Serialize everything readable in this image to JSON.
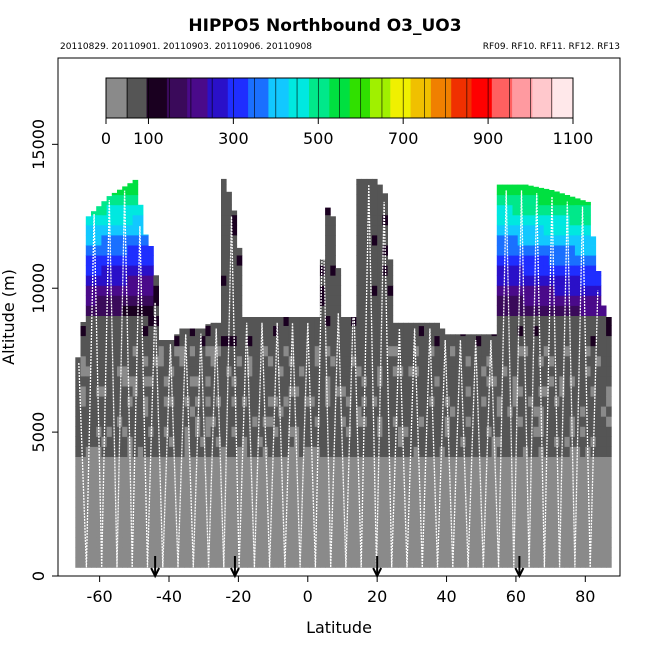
{
  "chart_data": {
    "type": "heatmap",
    "title": "HIPPO5 Northbound O3_UO3",
    "subtitle_left": "20110829. 20110901. 20110903. 20110906. 20110908",
    "subtitle_right": "RF09. RF10. RF11. RF12. RF13",
    "xlabel": "Latitude",
    "ylabel": "Altitude (m)",
    "xlim": [
      -72,
      90
    ],
    "ylim": [
      0,
      18000
    ],
    "x_ticks": [
      -60,
      -40,
      -20,
      0,
      20,
      40,
      60,
      80
    ],
    "y_ticks": [
      0,
      5000,
      10000,
      15000
    ],
    "colorbar": {
      "range": [
        0,
        1100
      ],
      "tick_values": [
        0,
        100,
        300,
        500,
        700,
        900,
        1100
      ],
      "tick_labels": [
        "0",
        "100",
        "300",
        "500",
        "700",
        "900",
        "1100"
      ],
      "colors": [
        "#8a8a8a",
        "#555555",
        "#1a0020",
        "#3a0a5a",
        "#4a0a8a",
        "#2a10c8",
        "#1f2eff",
        "#1a70ff",
        "#12c8ff",
        "#00e8e0",
        "#00e88a",
        "#00e040",
        "#30e000",
        "#a0f000",
        "#f0f000",
        "#f0c000",
        "#f08000",
        "#f03000",
        "#ff0000",
        "#ff6060",
        "#ff9aa0",
        "#ffc8cc",
        "#ffe8ea"
      ]
    },
    "profile_top_altitude_m": [
      {
        "lat": -66,
        "alt": 7600
      },
      {
        "lat": -64,
        "alt": 12500
      },
      {
        "lat": -58,
        "alt": 13200
      },
      {
        "lat": -50,
        "alt": 13800
      },
      {
        "lat": -48,
        "alt": 12000
      },
      {
        "lat": -45,
        "alt": 11200
      },
      {
        "lat": -43,
        "alt": 8200
      },
      {
        "lat": -40,
        "alt": 8200
      },
      {
        "lat": -37,
        "alt": 8600
      },
      {
        "lat": -31,
        "alt": 8600
      },
      {
        "lat": -29,
        "alt": 8800
      },
      {
        "lat": -26,
        "alt": 8800
      },
      {
        "lat": -25,
        "alt": 13800
      },
      {
        "lat": -23,
        "alt": 13200
      },
      {
        "lat": -21,
        "alt": 12200
      },
      {
        "lat": -19,
        "alt": 9000
      },
      {
        "lat": 3,
        "alt": 9000
      },
      {
        "lat": 4,
        "alt": 13000
      },
      {
        "lat": 7,
        "alt": 12400
      },
      {
        "lat": 9,
        "alt": 9000
      },
      {
        "lat": 13,
        "alt": 9000
      },
      {
        "lat": 14,
        "alt": 13800
      },
      {
        "lat": 19,
        "alt": 13800
      },
      {
        "lat": 22,
        "alt": 13200
      },
      {
        "lat": 24,
        "alt": 8800
      },
      {
        "lat": 37,
        "alt": 8800
      },
      {
        "lat": 39,
        "alt": 8400
      },
      {
        "lat": 53,
        "alt": 8400
      },
      {
        "lat": 54,
        "alt": 13600
      },
      {
        "lat": 62,
        "alt": 13600
      },
      {
        "lat": 70,
        "alt": 13400
      },
      {
        "lat": 80,
        "alt": 13000
      },
      {
        "lat": 85,
        "alt": 9000
      }
    ],
    "profile_bottom_altitude_m": 300,
    "transit_markers_lat": [
      -44,
      -21,
      20,
      61
    ]
  }
}
